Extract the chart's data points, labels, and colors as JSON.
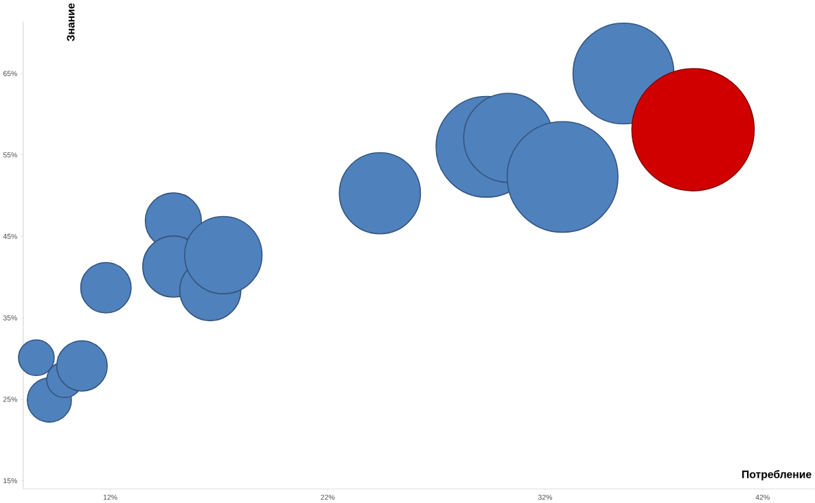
{
  "chart_data": {
    "type": "bubble",
    "xlabel": "Потребление",
    "ylabel": "Знание",
    "x": [
      8.6,
      9.2,
      9.9,
      10.7,
      11.8,
      14.9,
      14.9,
      16.6,
      17.2,
      24.4,
      29.3,
      30.3,
      32.8,
      35.6,
      38.8
    ],
    "values": [
      30.1,
      24.9,
      27.4,
      29.1,
      38.7,
      46.9,
      41.3,
      38.4,
      42.7,
      50.3,
      56.0,
      57.1,
      52.3,
      65.0,
      58.1
    ],
    "sizes": [
      0.085,
      0.13,
      0.085,
      0.17,
      0.17,
      0.21,
      0.25,
      0.25,
      0.4,
      0.44,
      0.68,
      0.53,
      0.82,
      0.68,
      1.0
    ],
    "colors": [
      "#4f81bd",
      "#4f81bd",
      "#4f81bd",
      "#4f81bd",
      "#4f81bd",
      "#4f81bd",
      "#4f81bd",
      "#4f81bd",
      "#4f81bd",
      "#4f81bd",
      "#4f81bd",
      "#4f81bd",
      "#4f81bd",
      "#4f81bd",
      "#d00000"
    ],
    "xlim": [
      8,
      44.4
    ],
    "ylim": [
      14,
      71.4
    ],
    "xticks": [
      {
        "value": 12,
        "label": "12%"
      },
      {
        "value": 22,
        "label": "22%"
      },
      {
        "value": 32,
        "label": "32%"
      },
      {
        "value": 42,
        "label": "42%"
      }
    ],
    "yticks": [
      {
        "value": 15,
        "label": "15%"
      },
      {
        "value": 25,
        "label": "25%"
      },
      {
        "value": 35,
        "label": "35%"
      },
      {
        "value": 45,
        "label": "45%"
      },
      {
        "value": 55,
        "label": "55%"
      },
      {
        "value": 65,
        "label": "65%"
      }
    ]
  }
}
